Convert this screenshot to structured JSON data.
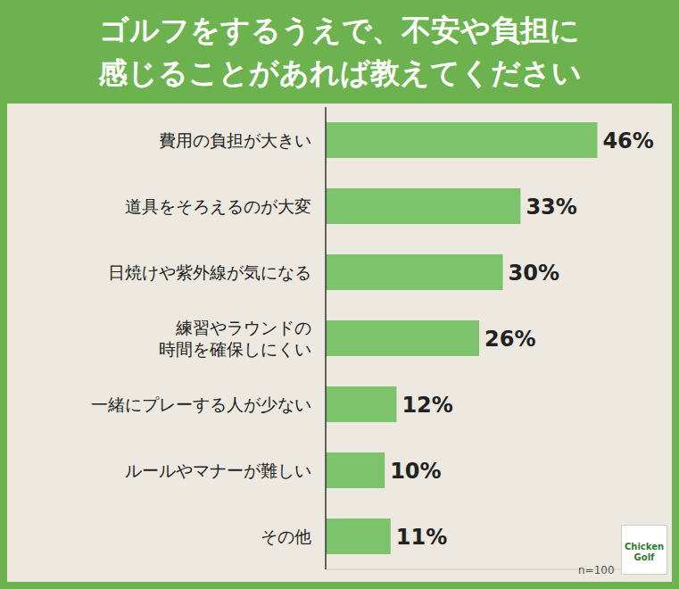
{
  "chart_data": {
    "type": "bar",
    "orientation": "horizontal",
    "title": "ゴルフをするうえで、不安や負担に\n感じることがあれば教えてください",
    "categories": [
      "費用の負担が大きい",
      "道具をそろえるのが大変",
      "日焼けや紫外線が気になる",
      "練習やラウンドの\n時間を確保しにくい",
      "一緒にプレーする人が少ない",
      "ルールやマナーが難しい",
      "その他"
    ],
    "values": [
      46,
      33,
      30,
      26,
      12,
      10,
      11
    ],
    "value_labels": [
      "46%",
      "33%",
      "30%",
      "26%",
      "12%",
      "10%",
      "11%"
    ],
    "color": "#7dc36b",
    "xlim": [
      0,
      55
    ],
    "data_labels": true,
    "tick_labels": "y",
    "grid": false,
    "note": "n=100",
    "logo": [
      "Chicken",
      "Golf"
    ]
  }
}
